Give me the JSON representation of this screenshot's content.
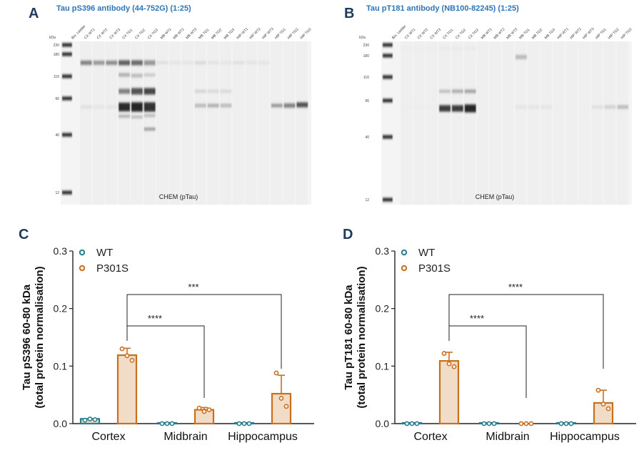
{
  "panels": {
    "A": {
      "letter": "A",
      "title": "Tau pS396 antibody (44-752G) (1:25)",
      "kda_header": "kDa",
      "lanes": [
        "Bio. Ladder",
        "CX WT1",
        "CX WT2",
        "CX WT3",
        "CX TG1",
        "CX TG2",
        "CX TG3",
        "MB WT1",
        "MB WT2",
        "MB WT3",
        "MB TG1",
        "MB TG2",
        "MB TG3",
        "HIP WT1",
        "HIP WT2",
        "HIP WT3",
        "HIP TG1",
        "HIP TG2",
        "HIP TG3"
      ],
      "markers": [
        "230",
        "180",
        "116",
        "66",
        "40",
        "12"
      ],
      "caption": "CHEM (pTau)"
    },
    "B": {
      "letter": "B",
      "title": "Tau pT181 antibody (NB100-82245) (1:25)",
      "kda_header": "kDa",
      "lanes": [
        "Bio. Ladder",
        "CX WT1",
        "CX WT2",
        "CX WT3",
        "CX TG1",
        "CX TG2",
        "CX TG3",
        "MB WT1",
        "MB WT2",
        "MB WT3",
        "MB TG1",
        "MB TG2",
        "MB TG3",
        "HIP WT1",
        "HIP WT2",
        "HIP WT3",
        "HIP TG1",
        "HIP TG2",
        "HIP TG3"
      ],
      "markers": [
        "230",
        "180",
        "116",
        "66",
        "40",
        "12"
      ],
      "caption": "CHEM (pTau)"
    },
    "C": {
      "letter": "C"
    },
    "D": {
      "letter": "D"
    }
  },
  "colors": {
    "wt": "#2a7d8c",
    "p301s": "#c8701e",
    "bar_fill": "#f1dcc8",
    "title_blue": "#2e75b6"
  },
  "chart_data": [
    {
      "panel": "C",
      "type": "bar",
      "ylabel_line1": "Tau pS396 60-80 kDa",
      "ylabel_line2": "(total protein normalisation)",
      "categories": [
        "Cortex",
        "Midbrain",
        "Hippocampus"
      ],
      "ylim": [
        0,
        0.3
      ],
      "yticks": [
        "0.0",
        "0.1",
        "0.2",
        "0.3"
      ],
      "legend": [
        "WT",
        "P301S"
      ],
      "series": [
        {
          "name": "WT",
          "values": [
            0.007,
            0.0,
            0.0
          ],
          "points": [
            [
              0.006,
              0.008,
              0.007
            ],
            [
              0.0,
              0.0,
              0.0
            ],
            [
              0.0,
              0.0,
              0.0
            ]
          ]
        },
        {
          "name": "P301S",
          "values": [
            0.119,
            0.024,
            0.052
          ],
          "error": [
            0.012,
            0.004,
            0.032
          ],
          "points": [
            [
              0.13,
              0.118,
              0.11
            ],
            [
              0.027,
              0.021,
              0.024
            ],
            [
              0.088,
              0.044,
              0.03
            ]
          ]
        }
      ],
      "comparisons": [
        {
          "label": "****",
          "from": "Cortex",
          "to": "Midbrain"
        },
        {
          "label": "***",
          "from": "Cortex",
          "to": "Hippocampus"
        }
      ]
    },
    {
      "panel": "D",
      "type": "bar",
      "ylabel_line1": "Tau pT181 60-80 kDa",
      "ylabel_line2": "(total protein normalisation)",
      "categories": [
        "Cortex",
        "Midbrain",
        "Hippocampus"
      ],
      "ylim": [
        0,
        0.3
      ],
      "yticks": [
        "0.0",
        "0.1",
        "0.2",
        "0.3"
      ],
      "legend": [
        "WT",
        "P301S"
      ],
      "series": [
        {
          "name": "WT",
          "values": [
            0.0,
            0.0,
            0.0
          ],
          "points": [
            [
              0.0,
              0.0,
              0.0
            ],
            [
              0.0,
              0.0,
              0.0
            ],
            [
              0.0,
              0.0,
              0.0
            ]
          ]
        },
        {
          "name": "P301S",
          "values": [
            0.109,
            0.0,
            0.036
          ],
          "error": [
            0.015,
            0.0,
            0.022
          ],
          "points": [
            [
              0.122,
              0.104,
              0.099
            ],
            [
              0.0,
              0.0,
              0.0
            ],
            [
              0.058,
              0.034,
              0.026
            ]
          ]
        }
      ],
      "comparisons": [
        {
          "label": "****",
          "from": "Cortex",
          "to": "Midbrain"
        },
        {
          "label": "****",
          "from": "Cortex",
          "to": "Hippocampus"
        }
      ]
    }
  ]
}
